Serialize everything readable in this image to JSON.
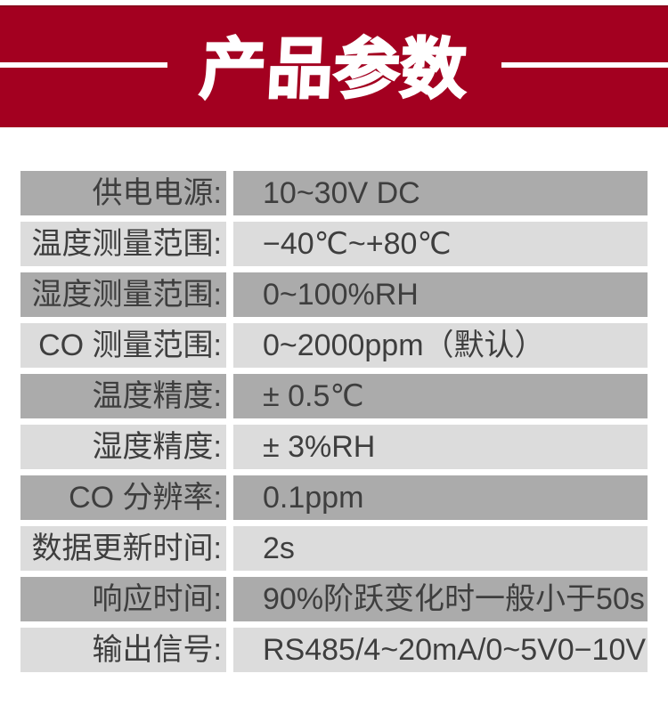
{
  "banner": {
    "title": "产品参数"
  },
  "colors": {
    "page_bg": "#ffffff",
    "banner_red": "#a30020",
    "banner_top_edge": "#8c061c",
    "banner_text": "#ffffff",
    "dash_color": "#ffffff",
    "row_dark": "#ababab",
    "row_light": "#dcdcdc",
    "text_dark": "#3e3e3e"
  },
  "table": {
    "rows": [
      {
        "label": "供电电源:",
        "value": "10~30V DC",
        "shade": "dark"
      },
      {
        "label": "温度测量范围:",
        "value": "−40℃~+80℃",
        "shade": "light"
      },
      {
        "label": "湿度测量范围:",
        "value": "0~100%RH",
        "shade": "dark"
      },
      {
        "label": "CO 测量范围:",
        "value": "0~2000ppm（默认）",
        "shade": "light"
      },
      {
        "label": "温度精度:",
        "value": "± 0.5℃",
        "shade": "dark"
      },
      {
        "label": "湿度精度:",
        "value": "± 3%RH",
        "shade": "light"
      },
      {
        "label": "CO 分辨率:",
        "value": "0.1ppm",
        "shade": "dark"
      },
      {
        "label": "数据更新时间:",
        "value": "2s",
        "shade": "light"
      },
      {
        "label": "响应时间:",
        "value": "90%阶跃变化时一般小于50s",
        "shade": "dark"
      },
      {
        "label": "输出信号:",
        "value": "RS485/4~20mA/0~5V0−10V",
        "shade": "light"
      }
    ]
  }
}
